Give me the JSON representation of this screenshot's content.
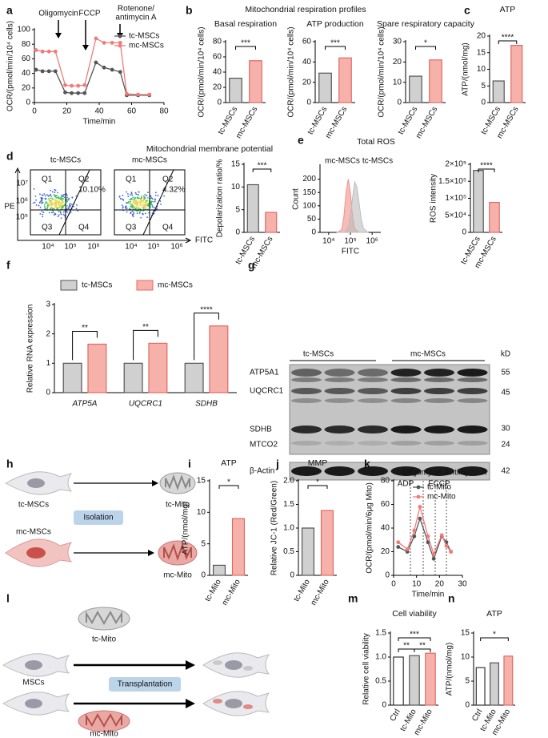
{
  "panel_letters": [
    "a",
    "b",
    "c",
    "d",
    "e",
    "f",
    "g",
    "h",
    "i",
    "j",
    "k",
    "l",
    "m",
    "n"
  ],
  "panel_b": {
    "heading": "Mitochondrial respiration profiles"
  },
  "panel_d": {
    "heading": "Mitochondrial membrane potential",
    "plots": [
      {
        "title": "tc-MSCs",
        "q1": "Q1",
        "q2": "Q2",
        "q3": "Q3",
        "q4": "Q4",
        "percent": "10.10%"
      },
      {
        "title": "mc-MSCs",
        "q1": "Q1",
        "q2": "Q2",
        "q3": "Q3",
        "q4": "Q4",
        "percent": "4.32%"
      }
    ],
    "y_axis": "PE",
    "x_axis": "FITC",
    "yticks": [
      "10⁷",
      "10⁶",
      "10⁵"
    ],
    "xticks": [
      "10⁴",
      "10⁵",
      "10⁶"
    ]
  },
  "panel_g": {
    "groups": [
      "tc-MSCs",
      "mc-MSCs"
    ],
    "unit": "kD",
    "rows": [
      {
        "name": "ATP5A1",
        "kd": "55"
      },
      {
        "name": "UQCRC1",
        "kd": "45"
      },
      {
        "name": "SDHB",
        "kd": "30"
      },
      {
        "name": "MTCO2",
        "kd": "24"
      },
      {
        "name": "β-Actin",
        "kd": "42"
      }
    ]
  },
  "panel_h": {
    "source_top": "tc-MSCs",
    "source_bottom": "mc-MSCs",
    "step": "Isolation",
    "product_top": "tc-Mito",
    "product_bottom": "mc-Mito"
  },
  "panel_l": {
    "mito_top": "tc-Mito",
    "cells": "MSCs",
    "step": "Transplantation",
    "mito_bottom": "mc-Mito"
  },
  "chart_data": [
    {
      "type": "line",
      "xlabel": "Time/min",
      "ylabel": "OCR/(pmol/min/10⁴ cells)",
      "x": [
        1,
        5,
        9,
        13,
        19,
        23,
        27,
        31,
        38,
        43,
        48,
        53,
        57,
        64,
        71
      ],
      "xlim": [
        0,
        80
      ],
      "xticks": [
        0,
        20,
        40,
        60,
        80
      ],
      "ylim": [
        0,
        100
      ],
      "yticks": [
        0,
        20,
        40,
        60,
        80,
        100
      ],
      "legend": "upper right",
      "annotations": [
        "Oligomycin",
        "FCCP",
        "Rotenone/",
        "antimycin A"
      ],
      "series": [
        {
          "name": "tc-MSCs",
          "color": "#555555",
          "values": [
            45,
            43,
            43,
            43,
            14,
            13,
            13,
            13,
            55,
            48,
            45,
            42,
            10,
            10,
            10
          ]
        },
        {
          "name": "mc-MSCs",
          "color": "#f07c78",
          "values": [
            72,
            70,
            70,
            70,
            24,
            23,
            23,
            24,
            88,
            82,
            82,
            82,
            12,
            11,
            11
          ]
        }
      ]
    },
    {
      "type": "bar",
      "title": "Basal respiration",
      "ylabel": "OCR/(pmol/min/10⁴ cells)",
      "categories": [
        "tc-MSCs",
        "mc-MSCs"
      ],
      "values": [
        32,
        55
      ],
      "colors": [
        "#d0d0d0",
        "#f7b1ab"
      ],
      "edge_colors": [
        "#555555",
        "#e06a62"
      ],
      "ylim": [
        0,
        80
      ],
      "yticks": [
        0,
        20,
        40,
        60,
        80
      ],
      "significance": [
        "***"
      ]
    },
    {
      "type": "bar",
      "title": "ATP production",
      "ylabel": "OCR/(pmol/min/10⁴ cells)",
      "categories": [
        "tc-MSCs",
        "mc-MSCs"
      ],
      "values": [
        29,
        44
      ],
      "colors": [
        "#d0d0d0",
        "#f7b1ab"
      ],
      "edge_colors": [
        "#555555",
        "#e06a62"
      ],
      "ylim": [
        0,
        60
      ],
      "yticks": [
        0,
        20,
        40,
        60
      ],
      "significance": [
        "***"
      ]
    },
    {
      "type": "bar",
      "title": "Spare respiratory capacity",
      "ylabel": "OCR/(pmol/min/10⁴ cells)",
      "categories": [
        "tc-MSCs",
        "mc-MSCs"
      ],
      "values": [
        13,
        21
      ],
      "colors": [
        "#d0d0d0",
        "#f7b1ab"
      ],
      "edge_colors": [
        "#555555",
        "#e06a62"
      ],
      "ylim": [
        0,
        30
      ],
      "yticks": [
        0,
        10,
        20,
        30
      ],
      "significance": [
        "*"
      ]
    },
    {
      "type": "bar",
      "title": "ATP",
      "ylabel": "ATP/(nmol/mg)",
      "categories": [
        "tc-MSCs",
        "mc-MSCs"
      ],
      "values": [
        6.5,
        17.2
      ],
      "colors": [
        "#d0d0d0",
        "#f7b1ab"
      ],
      "edge_colors": [
        "#555555",
        "#e06a62"
      ],
      "ylim": [
        0,
        20
      ],
      "yticks": [
        0,
        5,
        10,
        15,
        20
      ],
      "significance": [
        "****"
      ]
    },
    {
      "type": "bar",
      "ylabel": "Depolarization ratio/%",
      "categories": [
        "tc-MSCs",
        "mc-MSCs"
      ],
      "values": [
        10.5,
        4.4
      ],
      "colors": [
        "#d0d0d0",
        "#f7b1ab"
      ],
      "edge_colors": [
        "#555555",
        "#e06a62"
      ],
      "ylim": [
        0,
        15
      ],
      "yticks": [
        0,
        5,
        10,
        15
      ],
      "significance": [
        "***"
      ]
    },
    {
      "type": "area",
      "title": "Total ROS",
      "xlabel": "FITC",
      "ylabel": "Count",
      "x": [
        4.4,
        4.6,
        4.7,
        4.8,
        4.9,
        5.0,
        5.1,
        5.2,
        5.3,
        5.4,
        5.5,
        5.6,
        5.8
      ],
      "xlim": [
        3.6,
        6.4
      ],
      "xticks": [
        {
          "value": 4,
          "label": "10⁴"
        },
        {
          "value": 5,
          "label": "10⁵"
        },
        {
          "value": 6,
          "label": "10⁶"
        }
      ],
      "ylim": [
        0,
        250
      ],
      "yticks": [
        0,
        50,
        100,
        150,
        200
      ],
      "legend": "top",
      "series": [
        {
          "name": "mc-MSCs",
          "color": "#f28f88",
          "values": [
            0,
            10,
            60,
            150,
            200,
            150,
            60,
            15,
            5,
            0,
            0,
            0,
            0
          ]
        },
        {
          "name": "tc-MSCs",
          "color": "#bdbdbd",
          "values": [
            0,
            0,
            0,
            5,
            20,
            60,
            130,
            190,
            170,
            110,
            50,
            15,
            0
          ]
        }
      ]
    },
    {
      "type": "bar",
      "ylabel": "ROS intensity",
      "categories": [
        "tc-MSCs",
        "mc-MSCs"
      ],
      "values": [
        182000,
        88000
      ],
      "colors": [
        "#d0d0d0",
        "#f7b1ab"
      ],
      "edge_colors": [
        "#555555",
        "#e06a62"
      ],
      "ylim": [
        0,
        200000
      ],
      "yticks": [
        0,
        {
          "value": 50000,
          "label": "5×10⁴"
        },
        {
          "value": 100000,
          "label": "1×10⁵"
        },
        {
          "value": 150000,
          "label": "1.5×10⁵"
        },
        {
          "value": 200000,
          "label": "2×10⁵"
        }
      ],
      "significance": [
        "****"
      ]
    },
    {
      "type": "bar",
      "ylabel": "Relative RNA expression",
      "categories": [
        "ATP5A",
        "UQCRC1",
        "SDHB"
      ],
      "legend": "top",
      "series": [
        {
          "name": "tc-MSCs",
          "color": "#d0d0d0",
          "edge_color": "#555555",
          "values": [
            1.0,
            1.0,
            1.0
          ]
        },
        {
          "name": "mc-MSCs",
          "color": "#f7b1ab",
          "edge_color": "#e06a62",
          "values": [
            1.65,
            1.68,
            2.27
          ]
        }
      ],
      "ylim": [
        0,
        3
      ],
      "yticks": [
        0,
        1,
        2,
        3
      ],
      "significance": [
        "**",
        "**",
        "****"
      ]
    },
    {
      "type": "bar",
      "title": "ATP",
      "ylabel": "ATP/(nmol/mg)",
      "categories": [
        "tc-Mito",
        "mc-Mito"
      ],
      "values": [
        1.6,
        9.0
      ],
      "colors": [
        "#d0d0d0",
        "#f7b1ab"
      ],
      "edge_colors": [
        "#555555",
        "#e06a62"
      ],
      "ylim": [
        0,
        15
      ],
      "yticks": [
        0,
        5,
        10,
        15
      ],
      "significance": [
        "*"
      ]
    },
    {
      "type": "bar",
      "title": "MMP",
      "ylabel": "Relative JC-1 (Red/Green)",
      "categories": [
        "tc-Mito",
        "mc-Mito"
      ],
      "values": [
        1.0,
        1.37
      ],
      "colors": [
        "#d0d0d0",
        "#f7b1ab"
      ],
      "edge_colors": [
        "#555555",
        "#e06a62"
      ],
      "ylim": [
        0,
        2
      ],
      "yticks": [
        0,
        0.5,
        {
          "value": 1,
          "label": "1.0"
        },
        1.5,
        {
          "value": 2,
          "label": "2.0"
        }
      ],
      "significance": [
        "*"
      ]
    },
    {
      "type": "line",
      "xlabel": "Time/min",
      "ylabel": "OCR/(pmol/min/6μg Mito)",
      "x": [
        2,
        6,
        9,
        11.5,
        15,
        17.5,
        21,
        23,
        25
      ],
      "xlim": [
        0,
        30
      ],
      "xticks": [
        0,
        10,
        20,
        30
      ],
      "ylim": [
        0,
        80
      ],
      "yticks": [
        0,
        20,
        40,
        60,
        80
      ],
      "legend": "upper right",
      "annotations": [
        "ADP",
        "Oligomycin",
        "FCCP",
        "Antimycin A"
      ],
      "series": [
        {
          "name": "tc-Mito",
          "color": "#555555",
          "values": [
            24,
            20,
            33,
            48,
            28,
            14,
            33,
            28,
            20
          ]
        },
        {
          "name": "mc-Mito",
          "color": "#f07c78",
          "values": [
            28,
            22,
            38,
            58,
            33,
            18,
            34,
            25,
            20
          ]
        }
      ]
    },
    {
      "type": "bar",
      "title": "Cell viability",
      "ylabel": "Relative cell viability",
      "categories": [
        "Ctrl",
        "tc-Mito",
        "mc-Mito"
      ],
      "values": [
        1.0,
        1.03,
        1.08
      ],
      "colors": [
        "#ffffff",
        "#d0d0d0",
        "#f7b1ab"
      ],
      "edge_colors": [
        "#333333",
        "#555555",
        "#e06a62"
      ],
      "ylim": [
        0,
        1.5
      ],
      "yticks": [
        0,
        0.5,
        {
          "value": 1,
          "label": "1.0"
        },
        1.5
      ],
      "significance": [
        "**",
        "***",
        "**"
      ]
    },
    {
      "type": "bar",
      "title": "ATP",
      "ylabel": "ATP/(nmol/mg)",
      "categories": [
        "Ctrl",
        "tc-Mito",
        "mc-Mito"
      ],
      "values": [
        7.8,
        8.8,
        10.2
      ],
      "colors": [
        "#ffffff",
        "#d0d0d0",
        "#f7b1ab"
      ],
      "edge_colors": [
        "#333333",
        "#555555",
        "#e06a62"
      ],
      "ylim": [
        0,
        15
      ],
      "yticks": [
        0,
        5,
        10,
        15
      ],
      "significance": [
        "*"
      ]
    }
  ]
}
